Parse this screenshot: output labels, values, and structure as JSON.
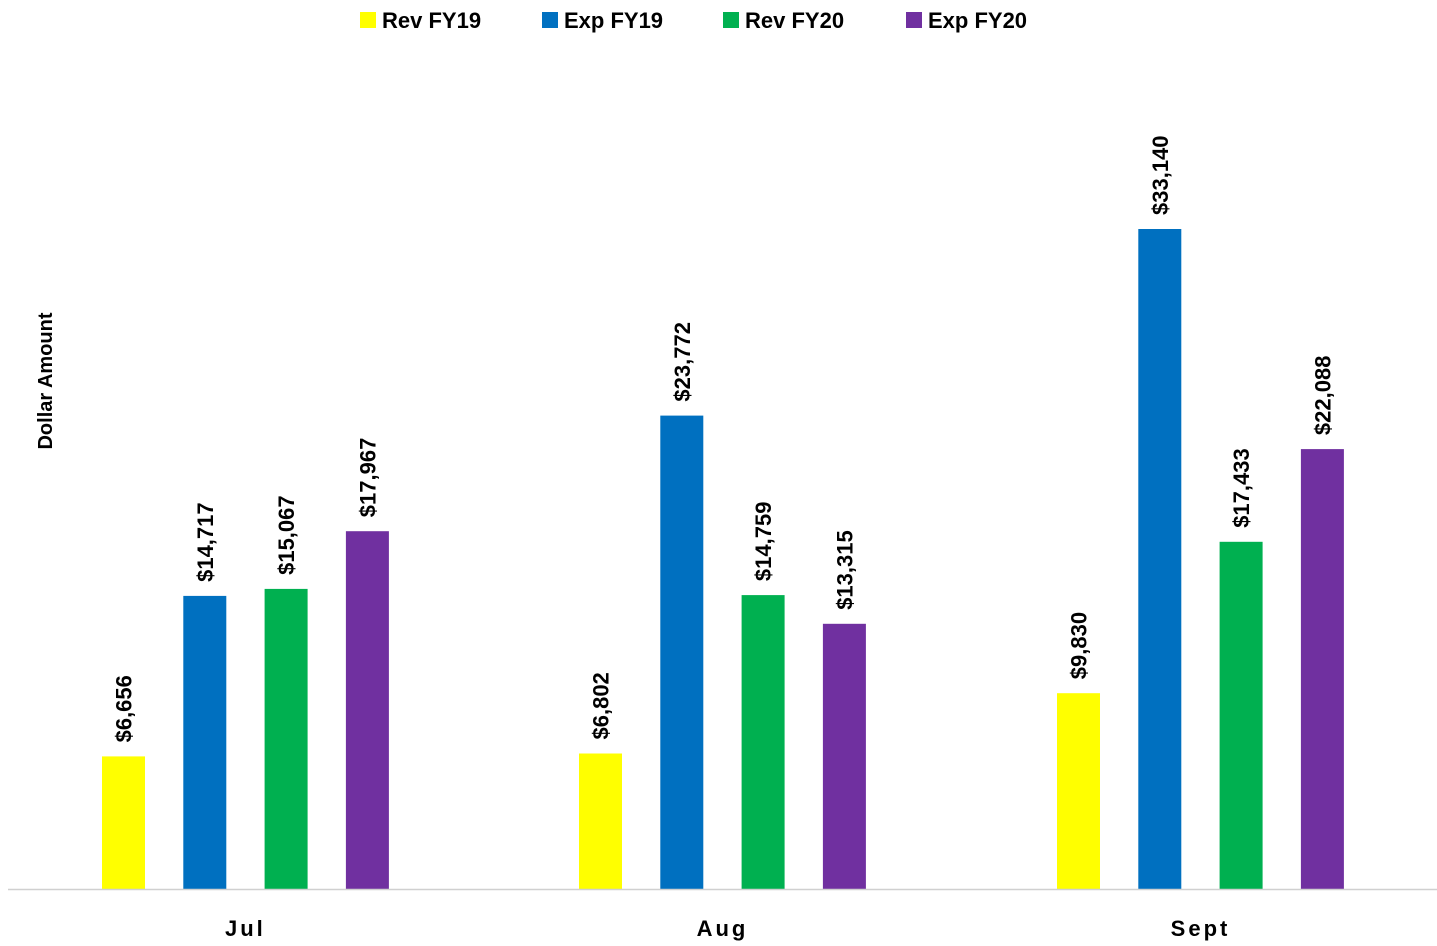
{
  "chart_data": {
    "type": "bar",
    "title": "",
    "xlabel": "",
    "ylabel": "Dollar Amount",
    "categories": [
      "Jul",
      "Aug",
      "Sept"
    ],
    "series": [
      {
        "name": "Rev FY19",
        "color": "#FFFF00",
        "values": [
          6656,
          6802,
          9830
        ],
        "labels": [
          "$6,656",
          "$6,802",
          "$9,830"
        ]
      },
      {
        "name": "Exp FY19",
        "color": "#0070C0",
        "values": [
          14717,
          23772,
          33140
        ],
        "labels": [
          "$14,717",
          "$23,772",
          "$33,140"
        ]
      },
      {
        "name": "Rev FY20",
        "color": "#00B050",
        "values": [
          15067,
          14759,
          17433
        ],
        "labels": [
          "$15,067",
          "$14,759",
          "$17,433"
        ]
      },
      {
        "name": "Exp FY20",
        "color": "#7030A0",
        "values": [
          17967,
          13315,
          22088
        ],
        "labels": [
          "$17,967",
          "$13,315",
          "$22,088"
        ]
      }
    ],
    "ylim": [
      0,
      38000
    ],
    "grid": false,
    "legend_position": "top",
    "data_labels_rotated": true
  }
}
